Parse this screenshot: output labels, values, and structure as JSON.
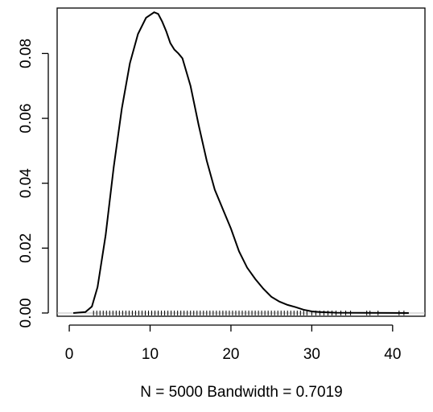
{
  "chart_data": {
    "type": "line",
    "title": "",
    "xlabel": "N = 5000   Bandwidth = 0.7019",
    "ylabel": "",
    "xlim": [
      -1.5,
      44
    ],
    "ylim": [
      -0.001,
      0.094
    ],
    "x_ticks": [
      0,
      10,
      20,
      30,
      40
    ],
    "x_tick_labels": [
      "0",
      "10",
      "20",
      "30",
      "40"
    ],
    "y_ticks": [
      0.0,
      0.02,
      0.04,
      0.06,
      0.08
    ],
    "y_tick_labels": [
      "0.00",
      "0.02",
      "0.04",
      "0.06",
      "0.08"
    ],
    "grid": false,
    "legend": "none",
    "series": [
      {
        "x": [
          0.5,
          2.0,
          2.8,
          3.5,
          4.5,
          5.5,
          6.5,
          7.5,
          8.5,
          9.5,
          10.5,
          11.0,
          11.5,
          12.0,
          12.5,
          13.0,
          13.5,
          14.0,
          15.0,
          16.0,
          17.0,
          18.0,
          19.0,
          20.0,
          21.0,
          22.0,
          23.0,
          24.0,
          25.0,
          26.0,
          27.0,
          28.0,
          29.0,
          30.0,
          31.0,
          33.0,
          36.0,
          40.0,
          42.0
        ],
        "y": [
          0.0,
          0.0003,
          0.002,
          0.008,
          0.024,
          0.045,
          0.063,
          0.077,
          0.086,
          0.091,
          0.0927,
          0.0922,
          0.0898,
          0.0868,
          0.0832,
          0.0812,
          0.08,
          0.0785,
          0.07,
          0.058,
          0.047,
          0.038,
          0.032,
          0.026,
          0.019,
          0.014,
          0.0105,
          0.0075,
          0.005,
          0.0035,
          0.0025,
          0.0018,
          0.001,
          0.0005,
          0.0003,
          0.0001,
          5e-05,
          2e-05,
          0.0
        ]
      }
    ],
    "rug": [
      3.0,
      3.4,
      3.8,
      4.2,
      4.6,
      5.0,
      5.4,
      5.8,
      6.2,
      6.6,
      7.0,
      7.4,
      7.8,
      8.2,
      8.6,
      9.0,
      9.4,
      9.8,
      10.2,
      10.6,
      11.0,
      11.4,
      11.8,
      12.2,
      12.6,
      13.0,
      13.4,
      13.8,
      14.2,
      14.6,
      15.0,
      15.4,
      15.8,
      16.2,
      16.6,
      17.0,
      17.4,
      17.8,
      18.2,
      18.6,
      19.0,
      19.4,
      19.8,
      20.2,
      20.6,
      21.0,
      21.4,
      21.8,
      22.2,
      22.6,
      23.0,
      23.4,
      23.8,
      24.2,
      24.6,
      25.0,
      25.4,
      25.8,
      26.2,
      26.6,
      27.0,
      27.4,
      27.8,
      28.2,
      28.6,
      29.0,
      29.4,
      30.0,
      30.5,
      31.0,
      31.5,
      32.0,
      32.5,
      33.0,
      33.6,
      34.2,
      34.8,
      36.8,
      37.2,
      38.2,
      40.8,
      41.4
    ]
  }
}
